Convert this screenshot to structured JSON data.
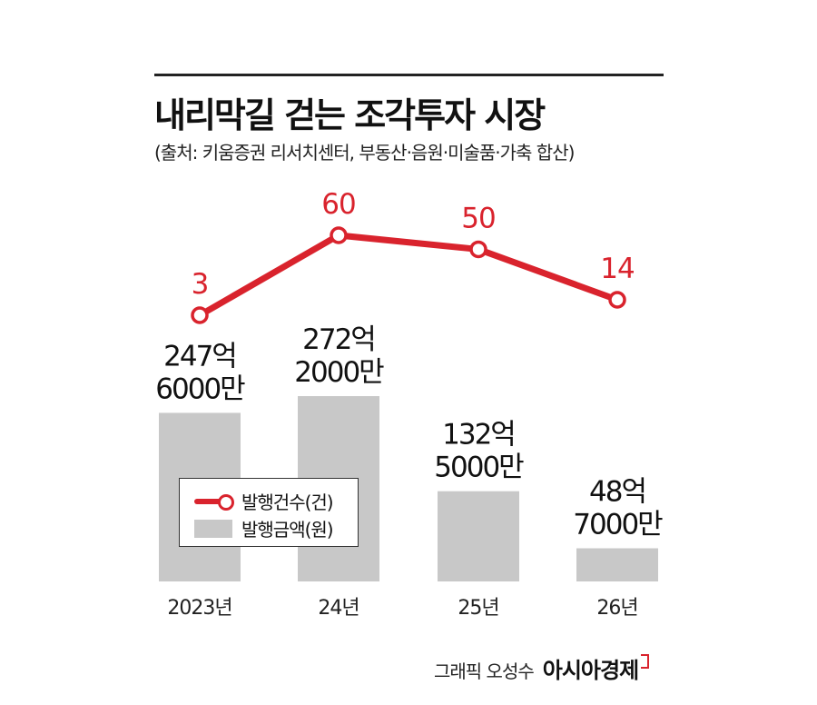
{
  "header": {
    "title": "내리막길 걷는 조각투자 시장",
    "source": "(출처: 키움증권 리서치센터, 부동산·음원·미술품·가축 합산)"
  },
  "chart_data": {
    "type": "bar",
    "categories": [
      "2023년",
      "24년",
      "25년",
      "26년"
    ],
    "series": [
      {
        "name": "발행금액(원)",
        "type": "bar",
        "values": [
          24760000000,
          27220000000,
          13250000000,
          4870000000
        ],
        "labels": [
          [
            "247억",
            "6000만"
          ],
          [
            "272억",
            "2000만"
          ],
          [
            "132억",
            "5000만"
          ],
          [
            "48억",
            "7000만"
          ]
        ],
        "color": "#c8c8c8"
      },
      {
        "name": "발행건수(건)",
        "type": "line",
        "values": [
          3,
          60,
          50,
          14
        ],
        "labels": [
          "3",
          "60",
          "50",
          "14"
        ],
        "color": "#d9232d"
      }
    ],
    "legend": {
      "position": "bottom-left",
      "items": [
        {
          "label": "발행건수(건)",
          "marker": "line-circle",
          "color": "#d9232d"
        },
        {
          "label": "발행금액(원)",
          "marker": "box",
          "color": "#c8c8c8"
        }
      ]
    },
    "grid": false
  },
  "credit": {
    "text": "그래픽 오성수",
    "brand": "아시아경제"
  }
}
